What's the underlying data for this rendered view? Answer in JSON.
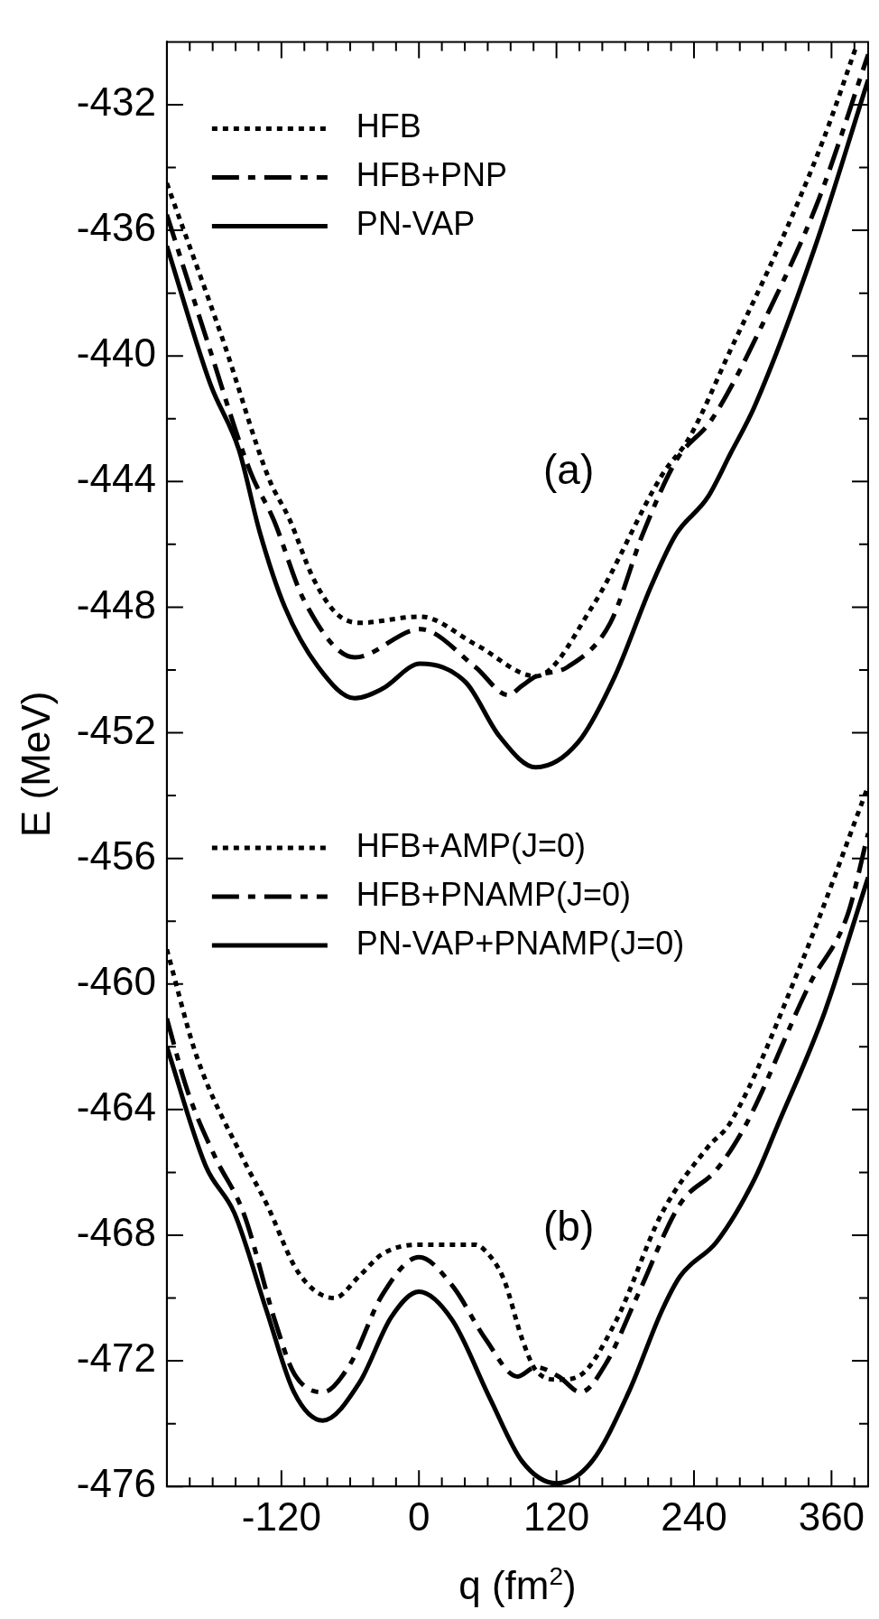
{
  "chart_data": {
    "type": "line",
    "ylabel": "E (MeV)",
    "xlabel": "q (fm$^{2}$)",
    "legend": "top left",
    "annotations": [
      "(a)",
      "(b)"
    ],
    "xlim": [
      -220,
      392
    ],
    "ylim": [
      -476,
      -430
    ],
    "xticks": [
      {
        "value": -200,
        "label": null
      },
      {
        "value": -180,
        "label": null
      },
      {
        "value": -160,
        "label": null
      },
      {
        "value": -140,
        "label": null
      },
      -120,
      {
        "value": -100,
        "label": null
      },
      {
        "value": -80,
        "label": null
      },
      {
        "value": -60,
        "label": null
      },
      {
        "value": -40,
        "label": null
      },
      {
        "value": -20,
        "label": null
      },
      0,
      {
        "value": 20,
        "label": null
      },
      {
        "value": 40,
        "label": null
      },
      {
        "value": 60,
        "label": null
      },
      {
        "value": 80,
        "label": null
      },
      {
        "value": 100,
        "label": null
      },
      120,
      {
        "value": 140,
        "label": null
      },
      {
        "value": 160,
        "label": null
      },
      {
        "value": 180,
        "label": null
      },
      {
        "value": 200,
        "label": null
      },
      {
        "value": 220,
        "label": null
      },
      240,
      {
        "value": 260,
        "label": null
      },
      {
        "value": 280,
        "label": null
      },
      {
        "value": 300,
        "label": null
      },
      {
        "value": 320,
        "label": null
      },
      {
        "value": 340,
        "label": null
      },
      360,
      {
        "value": 380,
        "label": null
      }
    ],
    "yticks": [
      -476,
      {
        "value": -474,
        "label": null
      },
      -472,
      {
        "value": -470,
        "label": null
      },
      -468,
      {
        "value": -466,
        "label": null
      },
      -464,
      {
        "value": -462,
        "label": null
      },
      -460,
      {
        "value": -458,
        "label": null
      },
      -456,
      {
        "value": -454,
        "label": null
      },
      -452,
      {
        "value": -450,
        "label": null
      },
      -448,
      {
        "value": -446,
        "label": null
      },
      -444,
      {
        "value": -442,
        "label": null
      },
      -440,
      {
        "value": -438,
        "label": null
      },
      -436,
      {
        "value": -434,
        "label": null
      },
      -432
    ],
    "series": [
      {
        "name": "HFB",
        "color": "#000000",
        "line_style": "dotted",
        "x": [
          -220,
          -171,
          -131,
          -113,
          -92,
          -72,
          -52,
          1,
          50,
          102,
          151,
          212,
          236,
          272,
          313,
          353,
          382
        ],
        "values": [
          -434.5,
          -439.5,
          -443.9,
          -445.2,
          -447.1,
          -448.2,
          -448.5,
          -448.3,
          -449.2,
          -450.2,
          -448.0,
          -443.8,
          -442.6,
          -439.8,
          -436.6,
          -433.1,
          -430.1
        ]
      },
      {
        "name": "HFB+PNP",
        "color": "#000000",
        "line_style": "dashdot",
        "x": [
          -220,
          -185,
          -147,
          -127,
          -100,
          -56,
          1,
          49,
          78,
          90,
          102,
          130,
          167,
          195,
          225,
          256,
          305,
          349,
          392
        ],
        "values": [
          -435.5,
          -439.5,
          -443.7,
          -445.2,
          -447.8,
          -449.6,
          -448.7,
          -449.9,
          -450.8,
          -450.5,
          -450.2,
          -449.9,
          -448.5,
          -445.7,
          -443.3,
          -442.0,
          -438.6,
          -435.0,
          -430.4
        ]
      },
      {
        "name": "PN-VAP",
        "color": "#000000",
        "line_style": "solid",
        "x": [
          -220,
          -182,
          -157,
          -139,
          -117,
          -88,
          -56,
          -32,
          1,
          41,
          70,
          102,
          139,
          171,
          203,
          224,
          252,
          272,
          293,
          345,
          392
        ],
        "values": [
          -436.5,
          -440.9,
          -443.0,
          -445.6,
          -448.0,
          -449.9,
          -450.9,
          -450.6,
          -449.8,
          -450.4,
          -452.1,
          -453.1,
          -452.3,
          -450.2,
          -447.3,
          -445.7,
          -444.5,
          -443.1,
          -441.6,
          -436.6,
          -431.2
        ]
      },
      {
        "name": "HFB+AMP(J=0)",
        "color": "#000000",
        "line_style": "dotted",
        "x": [
          -220,
          -194,
          -153,
          -133,
          -105,
          -74,
          -52,
          -32,
          0,
          49,
          58,
          74,
          90,
          102,
          122,
          139,
          171,
          212,
          252,
          272,
          333,
          392
        ],
        "values": [
          -458.9,
          -462.3,
          -465.6,
          -467.0,
          -469.2,
          -470.0,
          -469.3,
          -468.6,
          -468.3,
          -468.3,
          -468.5,
          -469.4,
          -471.3,
          -472.3,
          -472.6,
          -472.5,
          -470.8,
          -467.3,
          -465.2,
          -464.4,
          -459.4,
          -453.7
        ]
      },
      {
        "name": "HFB+PNAMP(J=0)",
        "color": "#000000",
        "line_style": "dashdot",
        "x": [
          -220,
          -202,
          -178,
          -153,
          -125,
          -109,
          -84,
          -60,
          -32,
          0,
          29,
          58,
          86,
          102,
          122,
          141,
          163,
          191,
          228,
          260,
          285,
          341,
          374,
          392
        ],
        "values": [
          -461.1,
          -463.4,
          -465.5,
          -467.3,
          -470.8,
          -472.4,
          -473.0,
          -472.1,
          -469.9,
          -468.7,
          -469.6,
          -471.3,
          -472.5,
          -472.2,
          -472.5,
          -473.0,
          -472.1,
          -469.9,
          -467.0,
          -465.9,
          -464.5,
          -460.0,
          -457.8,
          -455.2
        ]
      },
      {
        "name": "PN-VAP+PNAMP(J=0)",
        "color": "#000000",
        "line_style": "solid",
        "x": [
          -220,
          -186,
          -161,
          -133,
          -109,
          -84,
          -52,
          -24,
          0,
          29,
          62,
          90,
          120,
          151,
          183,
          212,
          228,
          260,
          293,
          313,
          354,
          392
        ],
        "values": [
          -462.0,
          -465.8,
          -467.3,
          -470.4,
          -473.0,
          -473.9,
          -472.7,
          -470.6,
          -469.8,
          -470.7,
          -473.2,
          -475.2,
          -475.9,
          -475.2,
          -473.0,
          -470.4,
          -469.3,
          -468.2,
          -466.2,
          -464.5,
          -460.9,
          -456.6
        ]
      }
    ]
  }
}
